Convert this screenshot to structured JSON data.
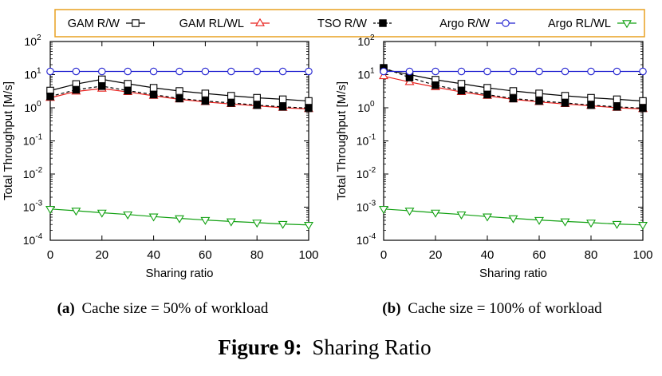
{
  "legend": {
    "entries": [
      {
        "label": "GAM R/W",
        "color": "#000000",
        "marker": "square-open",
        "dash": "solid"
      },
      {
        "label": "GAM RL/WL",
        "color": "#e8201c",
        "marker": "triangle-up-open",
        "dash": "solid"
      },
      {
        "label": "TSO R/W",
        "color": "#000000",
        "marker": "square-filled",
        "dash": "dashed"
      },
      {
        "label": "Argo R/W",
        "color": "#2020d0",
        "marker": "circle-open",
        "dash": "solid"
      },
      {
        "label": "Argo RL/WL",
        "color": "#10a010",
        "marker": "triangle-down-open",
        "dash": "solid"
      }
    ],
    "border_color": "#e8a020"
  },
  "figure": {
    "number_label": "Figure 9:",
    "title": "Sharing Ratio"
  },
  "chart_data": [
    {
      "type": "line",
      "panel_label": "(a)",
      "caption": "Cache size = 50% of workload",
      "xlabel": "Sharing ratio",
      "ylabel": "Total Throughput [M/s]",
      "xlim": [
        0,
        100
      ],
      "ylim": [
        0.0001,
        100
      ],
      "yscale": "log",
      "x_ticks": [
        "0",
        "20",
        "40",
        "60",
        "80",
        "100"
      ],
      "y_ticks": [
        {
          "base": "10",
          "exp": "-4"
        },
        {
          "base": "10",
          "exp": "-3"
        },
        {
          "base": "10",
          "exp": "-2"
        },
        {
          "base": "10",
          "exp": "-1"
        },
        {
          "base": "10",
          "exp": "0"
        },
        {
          "base": "10",
          "exp": "1"
        },
        {
          "base": "10",
          "exp": "2"
        }
      ],
      "x": [
        0,
        10,
        20,
        30,
        40,
        50,
        60,
        70,
        80,
        90,
        100
      ],
      "series": [
        {
          "name": "GAM R/W",
          "values": [
            3.3,
            5.2,
            7.2,
            5.3,
            4.0,
            3.2,
            2.7,
            2.3,
            2.0,
            1.8,
            1.6
          ]
        },
        {
          "name": "GAM RL/WL",
          "values": [
            2.0,
            3.1,
            3.8,
            3.0,
            2.3,
            1.8,
            1.5,
            1.3,
            1.15,
            1.0,
            0.92
          ]
        },
        {
          "name": "TSO R/W",
          "values": [
            2.2,
            3.5,
            4.5,
            3.3,
            2.5,
            1.9,
            1.6,
            1.4,
            1.2,
            1.07,
            0.97
          ]
        },
        {
          "name": "Argo R/W",
          "values": [
            12.5,
            12.5,
            12.5,
            12.5,
            12.5,
            12.5,
            12.5,
            12.5,
            12.5,
            12.5,
            12.5
          ]
        },
        {
          "name": "Argo RL/WL",
          "values": [
            0.00088,
            0.00078,
            0.00068,
            0.0006,
            0.00052,
            0.00046,
            0.00041,
            0.00037,
            0.00034,
            0.00031,
            0.00029
          ]
        }
      ]
    },
    {
      "type": "line",
      "panel_label": "(b)",
      "caption": "Cache size = 100% of workload",
      "xlabel": "Sharing ratio",
      "ylabel": "Total Throughput [M/s]",
      "xlim": [
        0,
        100
      ],
      "ylim": [
        0.0001,
        100
      ],
      "yscale": "log",
      "x_ticks": [
        "0",
        "20",
        "40",
        "60",
        "80",
        "100"
      ],
      "y_ticks": [
        {
          "base": "10",
          "exp": "-4"
        },
        {
          "base": "10",
          "exp": "-3"
        },
        {
          "base": "10",
          "exp": "-2"
        },
        {
          "base": "10",
          "exp": "-1"
        },
        {
          "base": "10",
          "exp": "0"
        },
        {
          "base": "10",
          "exp": "1"
        },
        {
          "base": "10",
          "exp": "2"
        }
      ],
      "x": [
        0,
        10,
        20,
        30,
        40,
        50,
        60,
        70,
        80,
        90,
        100
      ],
      "series": [
        {
          "name": "GAM R/W",
          "values": [
            14.5,
            10.0,
            7.0,
            5.3,
            4.0,
            3.2,
            2.7,
            2.3,
            2.0,
            1.8,
            1.6
          ]
        },
        {
          "name": "GAM RL/WL",
          "values": [
            9.0,
            6.0,
            4.2,
            3.0,
            2.3,
            1.8,
            1.5,
            1.3,
            1.15,
            1.0,
            0.92
          ]
        },
        {
          "name": "TSO R/W",
          "values": [
            16.0,
            8.2,
            4.8,
            3.3,
            2.5,
            1.9,
            1.6,
            1.4,
            1.2,
            1.07,
            0.97
          ]
        },
        {
          "name": "Argo R/W",
          "values": [
            12.5,
            12.5,
            12.5,
            12.5,
            12.5,
            12.5,
            12.5,
            12.5,
            12.5,
            12.5,
            12.5
          ]
        },
        {
          "name": "Argo RL/WL",
          "values": [
            0.00088,
            0.00078,
            0.00068,
            0.0006,
            0.00052,
            0.00046,
            0.00041,
            0.00037,
            0.00034,
            0.00031,
            0.00029
          ]
        }
      ]
    }
  ]
}
